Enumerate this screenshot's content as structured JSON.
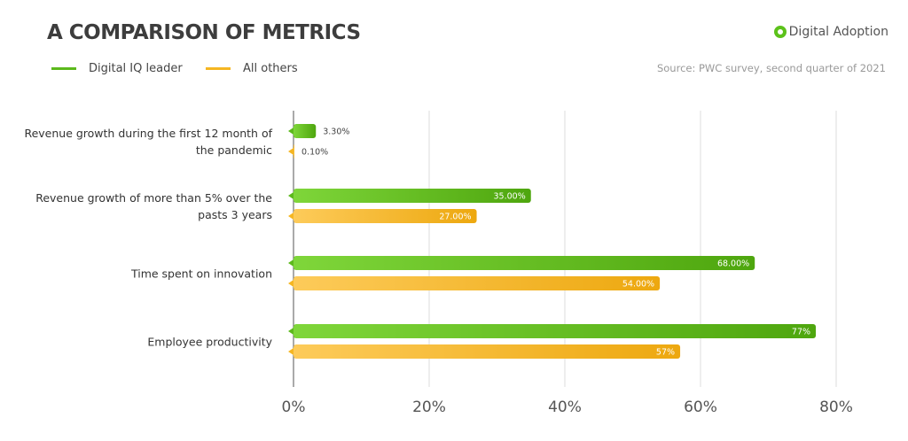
{
  "chart_data": {
    "type": "bar",
    "orientation": "horizontal",
    "title": "A COMPARISON OF METRICS",
    "source": "Source: PWC survey, second quarter of 2021",
    "categories": [
      "Revenue growth during the first 12 month of the pandemic",
      "Revenue growth of more than 5% over the pasts 3 years",
      "Time spent on innovation",
      "Employee productivity"
    ],
    "series": [
      {
        "name": "Digital IQ leader",
        "color": "#5cb91c",
        "values": [
          3.3,
          35,
          68,
          77
        ],
        "labels": [
          "3.30%",
          "35.00%",
          "68.00%",
          "77%"
        ]
      },
      {
        "name": "All others",
        "color": "#f5b622",
        "values": [
          0.1,
          27,
          54,
          57
        ],
        "labels": [
          "0.10%",
          "27.00%",
          "54.00%",
          "57%"
        ]
      }
    ],
    "xlim": [
      0,
      80
    ],
    "xticks": [
      "0%",
      "20%",
      "40%",
      "60%",
      "80%"
    ],
    "grid": true,
    "legend_position": "top-left"
  },
  "logo": {
    "text": "Digital Adoption"
  }
}
